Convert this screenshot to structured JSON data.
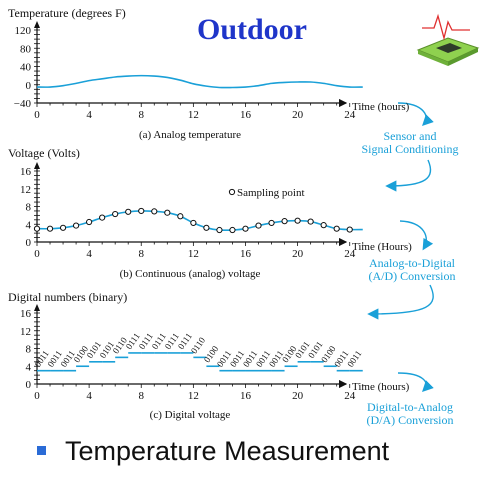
{
  "title": "Outdoor",
  "bullet": "Temperature Measurement",
  "stages": [
    [
      "Sensor and",
      "Signal Conditioning"
    ],
    [
      "Analog-to-Digital",
      "(A/D) Conversion"
    ],
    [
      "Digital-to-Analog",
      "(D/A) Conversion"
    ]
  ],
  "x_ticks": [
    "0",
    "4",
    "8",
    "12",
    "16",
    "20",
    "24"
  ],
  "panel_a": {
    "ylabel": "Temperature (degrees F)",
    "xlabel": "Time (hours)",
    "caption": "(a) Analog temperature",
    "y_ticks": [
      "120",
      "80",
      "40",
      "0",
      "−40"
    ]
  },
  "panel_b": {
    "ylabel": "Voltage (Volts)",
    "xlabel": "Time (Hours)",
    "caption": "(b) Continuous (analog) voltage",
    "legend": "Sampling point",
    "y_ticks": [
      "16",
      "12",
      "8",
      "4",
      "0"
    ]
  },
  "panel_c": {
    "ylabel": "Digital numbers (binary)",
    "xlabel": "Time (hours)",
    "caption": "(c) Digital voltage",
    "y_ticks": [
      "16",
      "12",
      "8",
      "4",
      "0"
    ],
    "codes": [
      "0011",
      "0011",
      "0011",
      "0100",
      "0101",
      "0101",
      "0110",
      "0111",
      "0111",
      "0111",
      "0111",
      "0111",
      "0110",
      "0100",
      "0011",
      "0011",
      "0011",
      "0011",
      "0011",
      "0100",
      "0101",
      "0101",
      "0100",
      "0011",
      "0011"
    ]
  },
  "chart_data": [
    {
      "type": "line",
      "x": [
        0,
        1,
        2,
        3,
        4,
        5,
        6,
        7,
        8,
        9,
        10,
        11,
        12,
        13,
        14,
        15,
        16,
        17,
        18,
        19,
        20,
        21,
        22,
        23,
        24,
        25
      ],
      "y": [
        -5,
        -5,
        -2,
        3,
        9,
        13,
        17,
        19,
        20,
        19,
        16,
        10,
        2,
        -3,
        -6,
        -6,
        -5,
        -2,
        3,
        5,
        6,
        6,
        3,
        -2,
        -5,
        -5
      ],
      "ylabel": "Temperature (degrees F)",
      "xlabel": "Time (hours)",
      "ylim": [
        -40,
        120
      ],
      "xlim": [
        0,
        26
      ]
    },
    {
      "type": "line",
      "x": [
        0,
        1,
        2,
        3,
        4,
        5,
        6,
        7,
        8,
        9,
        10,
        11,
        12,
        13,
        14,
        15,
        16,
        17,
        18,
        19,
        20,
        21,
        22,
        23,
        24,
        25
      ],
      "y": [
        3,
        3,
        3.2,
        3.7,
        4.5,
        5.5,
        6.3,
        6.8,
        7,
        6.9,
        6.6,
        5.8,
        4.3,
        3.2,
        2.7,
        2.7,
        3,
        3.7,
        4.3,
        4.7,
        4.8,
        4.6,
        3.8,
        3,
        2.8,
        2.8
      ],
      "ylabel": "Voltage (Volts)",
      "xlabel": "Time (Hours)",
      "ylim": [
        0,
        16
      ],
      "xlim": [
        0,
        26
      ],
      "series": [
        {
          "name": "Sampling point"
        }
      ]
    },
    {
      "type": "line",
      "x": [
        0,
        1,
        2,
        3,
        4,
        5,
        6,
        7,
        8,
        9,
        10,
        11,
        12,
        13,
        14,
        15,
        16,
        17,
        18,
        19,
        20,
        21,
        22,
        23,
        24
      ],
      "y": [
        3,
        3,
        3,
        4,
        5,
        5,
        6,
        7,
        7,
        7,
        7,
        7,
        6,
        4,
        3,
        3,
        3,
        3,
        3,
        4,
        5,
        5,
        4,
        3,
        3
      ],
      "ylabel": "Digital numbers (binary)",
      "xlabel": "Time (hours)",
      "ylim": [
        0,
        16
      ],
      "xlim": [
        0,
        26
      ]
    }
  ]
}
